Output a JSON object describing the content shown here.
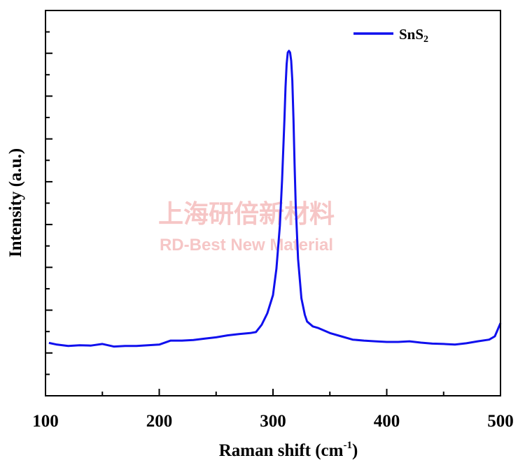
{
  "watermark": {
    "line1": "上海研倍新材料",
    "line2": "RD-Best New Material",
    "color": "#f6c6c6"
  },
  "chart_data": {
    "type": "line",
    "xlabel": "Raman shift (cm",
    "xlabel_sup": "-1",
    "xlabel_close": ")",
    "ylabel": "Intensity (a.u.)",
    "xlim": [
      100,
      500
    ],
    "ylim": [
      0,
      1
    ],
    "x_ticks": [
      100,
      200,
      300,
      400,
      500
    ],
    "x_tick_labels": [
      "100",
      "200",
      "300",
      "400",
      "500"
    ],
    "y_tick_count": 9,
    "y_tick_labels_shown": false,
    "grid": false,
    "legend_position": "top-right",
    "series": [
      {
        "name": "SnS",
        "name_sub": "2",
        "color": "#1010ee",
        "x": [
          103,
          110,
          120,
          130,
          140,
          150,
          160,
          170,
          180,
          190,
          200,
          210,
          220,
          230,
          240,
          250,
          260,
          270,
          280,
          285,
          290,
          295,
          300,
          303,
          306,
          308,
          310,
          311,
          312,
          313,
          314,
          315,
          316,
          317,
          318,
          319,
          320,
          322,
          325,
          328,
          330,
          335,
          340,
          350,
          360,
          370,
          380,
          390,
          400,
          410,
          420,
          430,
          440,
          450,
          460,
          470,
          480,
          490,
          495,
          500
        ],
        "y": [
          0.105,
          0.1,
          0.096,
          0.098,
          0.097,
          0.102,
          0.094,
          0.096,
          0.096,
          0.098,
          0.1,
          0.112,
          0.112,
          0.114,
          0.118,
          0.122,
          0.128,
          0.132,
          0.135,
          0.138,
          0.16,
          0.195,
          0.25,
          0.33,
          0.46,
          0.6,
          0.78,
          0.88,
          0.95,
          0.985,
          0.99,
          0.985,
          0.96,
          0.9,
          0.78,
          0.64,
          0.52,
          0.36,
          0.24,
          0.19,
          0.17,
          0.155,
          0.15,
          0.135,
          0.125,
          0.115,
          0.112,
          0.11,
          0.108,
          0.108,
          0.11,
          0.106,
          0.103,
          0.102,
          0.1,
          0.104,
          0.11,
          0.115,
          0.125,
          0.165
        ]
      }
    ]
  }
}
